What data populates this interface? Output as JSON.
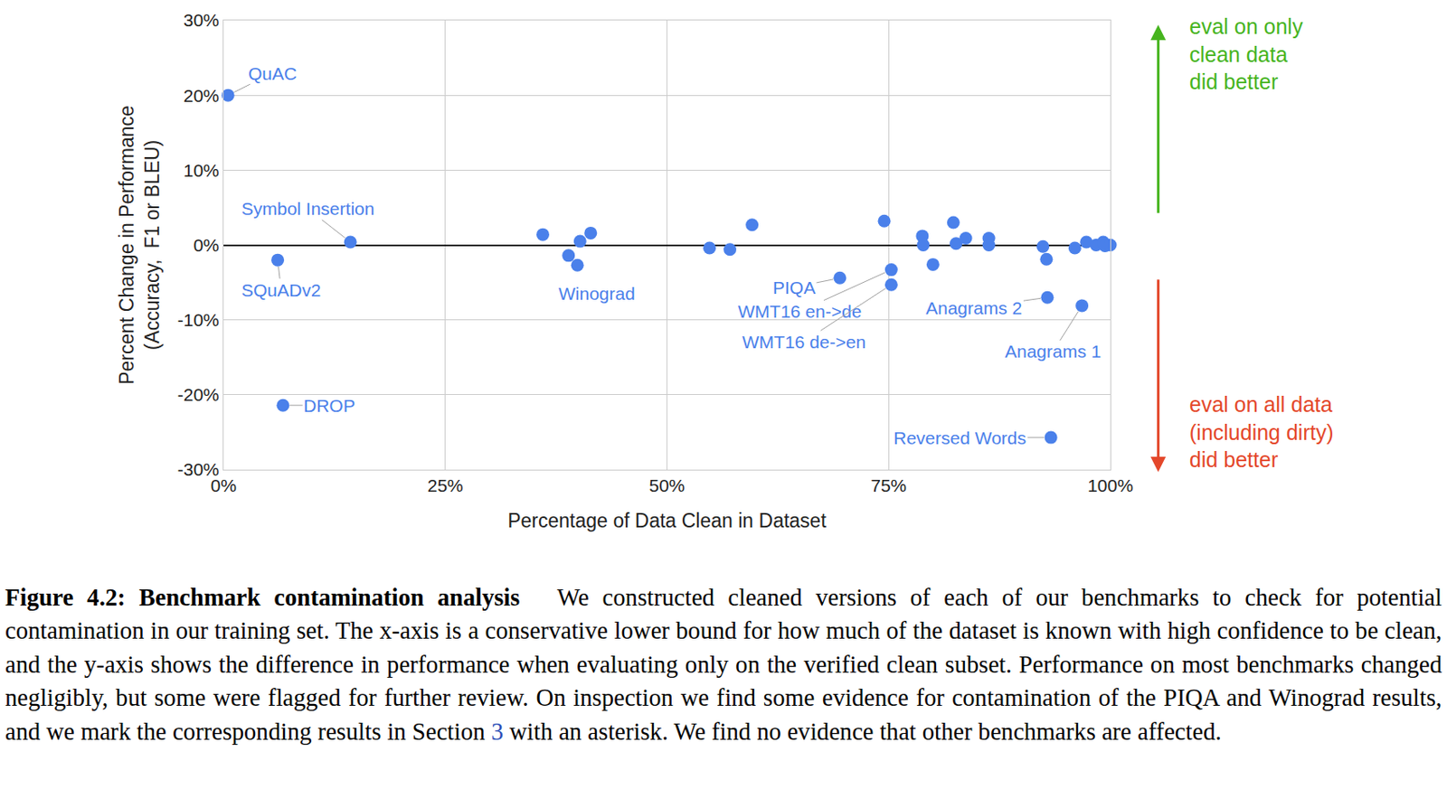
{
  "chart_data": {
    "type": "scatter",
    "x_label": "Percentage of Data Clean in Dataset",
    "y_label": [
      "Percent Change in Performance",
      "(Accuracy,  F1 or BLEU)"
    ],
    "color": "#4a80ea",
    "marker": "circle",
    "grid": true,
    "x": [
      0.5,
      6.1,
      6.7,
      14.3,
      36.0,
      38.9,
      39.9,
      40.2,
      41.4,
      54.8,
      57.1,
      59.6,
      69.5,
      74.5,
      75.3,
      75.3,
      78.8,
      78.9,
      80.0,
      82.3,
      82.6,
      83.7,
      86.3,
      86.3,
      92.4,
      92.8,
      92.9,
      93.3,
      96.0,
      96.8,
      97.3,
      98.4,
      99.2,
      99.4,
      100
    ],
    "values": [
      20,
      -2.0,
      -21.4,
      0.4,
      1.4,
      -1.4,
      -2.7,
      0.5,
      1.6,
      -0.4,
      -0.6,
      2.7,
      -4.4,
      3.2,
      -3.3,
      -5.3,
      1.2,
      0.0,
      -2.6,
      3.0,
      0.2,
      0.9,
      0.9,
      0.0,
      -0.2,
      -1.9,
      -7.0,
      -25.7,
      -0.4,
      -8.1,
      0.4,
      0.0,
      0.4,
      -0.1,
      0.0
    ],
    "labels": [
      "QuAC",
      "SQuADv2",
      "DROP",
      "Symbol Insertion",
      null,
      null,
      "Winograd",
      null,
      null,
      null,
      null,
      null,
      "PIQA",
      null,
      "WMT16 en->de",
      "WMT16 de->en",
      null,
      null,
      null,
      null,
      null,
      null,
      null,
      null,
      null,
      null,
      "Anagrams 2",
      "Reversed Words",
      null,
      "Anagrams 1",
      null,
      null,
      null,
      null,
      null
    ],
    "xlim": [
      0,
      100
    ],
    "ylim": [
      -30,
      30
    ],
    "xticks": [
      {
        "value": 0,
        "label": "0%"
      },
      {
        "value": 25,
        "label": "25%"
      },
      {
        "value": 50,
        "label": "50%"
      },
      {
        "value": 75,
        "label": "75%"
      },
      {
        "value": 100,
        "label": "100%"
      }
    ],
    "yticks": [
      {
        "value": -30,
        "label": "-30%"
      },
      {
        "value": -20,
        "label": "-20%"
      },
      {
        "value": -10,
        "label": "-10%"
      },
      {
        "value": 0,
        "label": "0%"
      },
      {
        "value": 10,
        "label": "10%"
      },
      {
        "value": 20,
        "label": "20%"
      },
      {
        "value": 30,
        "label": "30%"
      }
    ],
    "annotations": [
      {
        "text": [
          "eval on only",
          "clean data",
          "did better"
        ],
        "color": "#46b41e"
      },
      {
        "text": [
          "eval on all data",
          "(including dirty)",
          "did better"
        ],
        "color": "#e4472a"
      }
    ]
  },
  "caption": {
    "label": "Figure 4.2: Benchmark contamination analysis",
    "text_before_link": "We constructed cleaned versions of each of our benchmarks to check for potential contamination in our training set. The x-axis is a conservative lower bound for how much of the dataset is known with high confidence to be clean, and the y-axis shows the difference in performance when evaluating only on the verified clean subset. Performance on most benchmarks changed negligibly, but some were flagged for further review. On inspection we find some evidence for contamination of the PIQA and Winograd results, and we mark the corresponding results in Section ",
    "link": "3",
    "text_after_link": " with an asterisk. We find no evidence that other benchmarks are affected."
  }
}
